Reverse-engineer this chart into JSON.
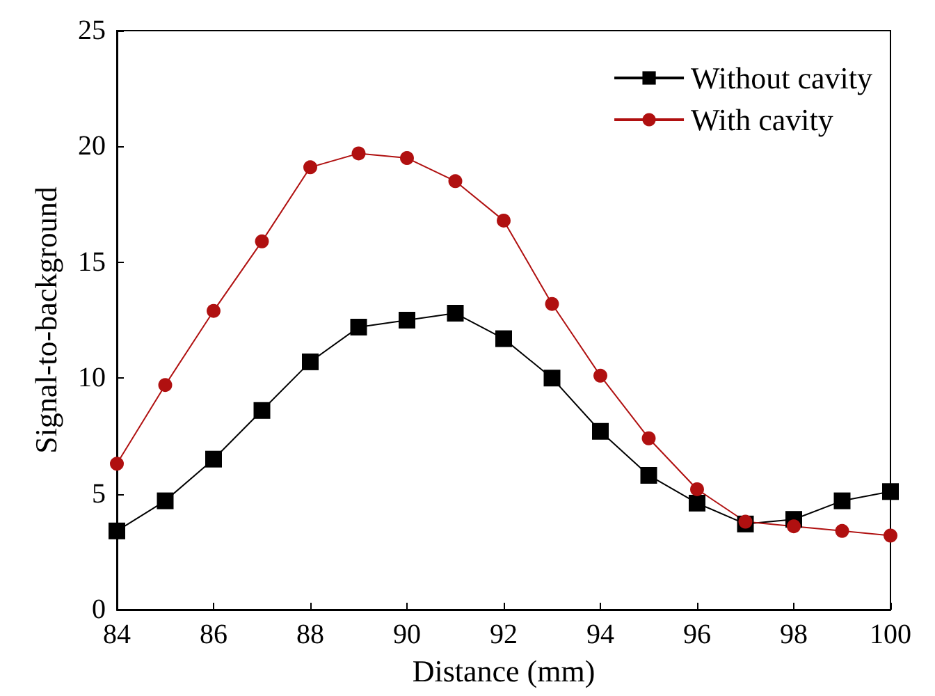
{
  "chart_data": {
    "type": "line",
    "xlabel": "Distance (mm)",
    "ylabel": "Signal-to-background",
    "x": [
      84,
      85,
      86,
      87,
      88,
      89,
      90,
      91,
      92,
      93,
      94,
      95,
      96,
      97,
      98,
      99,
      100
    ],
    "series": [
      {
        "name": "Without cavity",
        "color": "#000000",
        "marker": "square",
        "values": [
          3.4,
          4.7,
          6.5,
          8.6,
          10.7,
          12.2,
          12.5,
          12.8,
          11.7,
          10.0,
          7.7,
          5.8,
          4.6,
          3.7,
          3.9,
          4.7,
          5.1
        ]
      },
      {
        "name": "With cavity",
        "color": "#b01010",
        "marker": "circle",
        "values": [
          6.3,
          9.7,
          12.9,
          15.9,
          19.1,
          19.7,
          19.5,
          18.5,
          16.8,
          13.2,
          10.1,
          7.4,
          5.2,
          3.8,
          3.6,
          3.4,
          3.2
        ]
      }
    ],
    "xlim": [
      84,
      100
    ],
    "xticks": [
      84,
      86,
      88,
      90,
      92,
      94,
      96,
      98,
      100
    ],
    "ylim": [
      0,
      25
    ],
    "yticks": [
      0,
      5,
      10,
      15,
      20,
      25
    ],
    "grid": false,
    "legend": "top right",
    "line_style": "solid"
  }
}
